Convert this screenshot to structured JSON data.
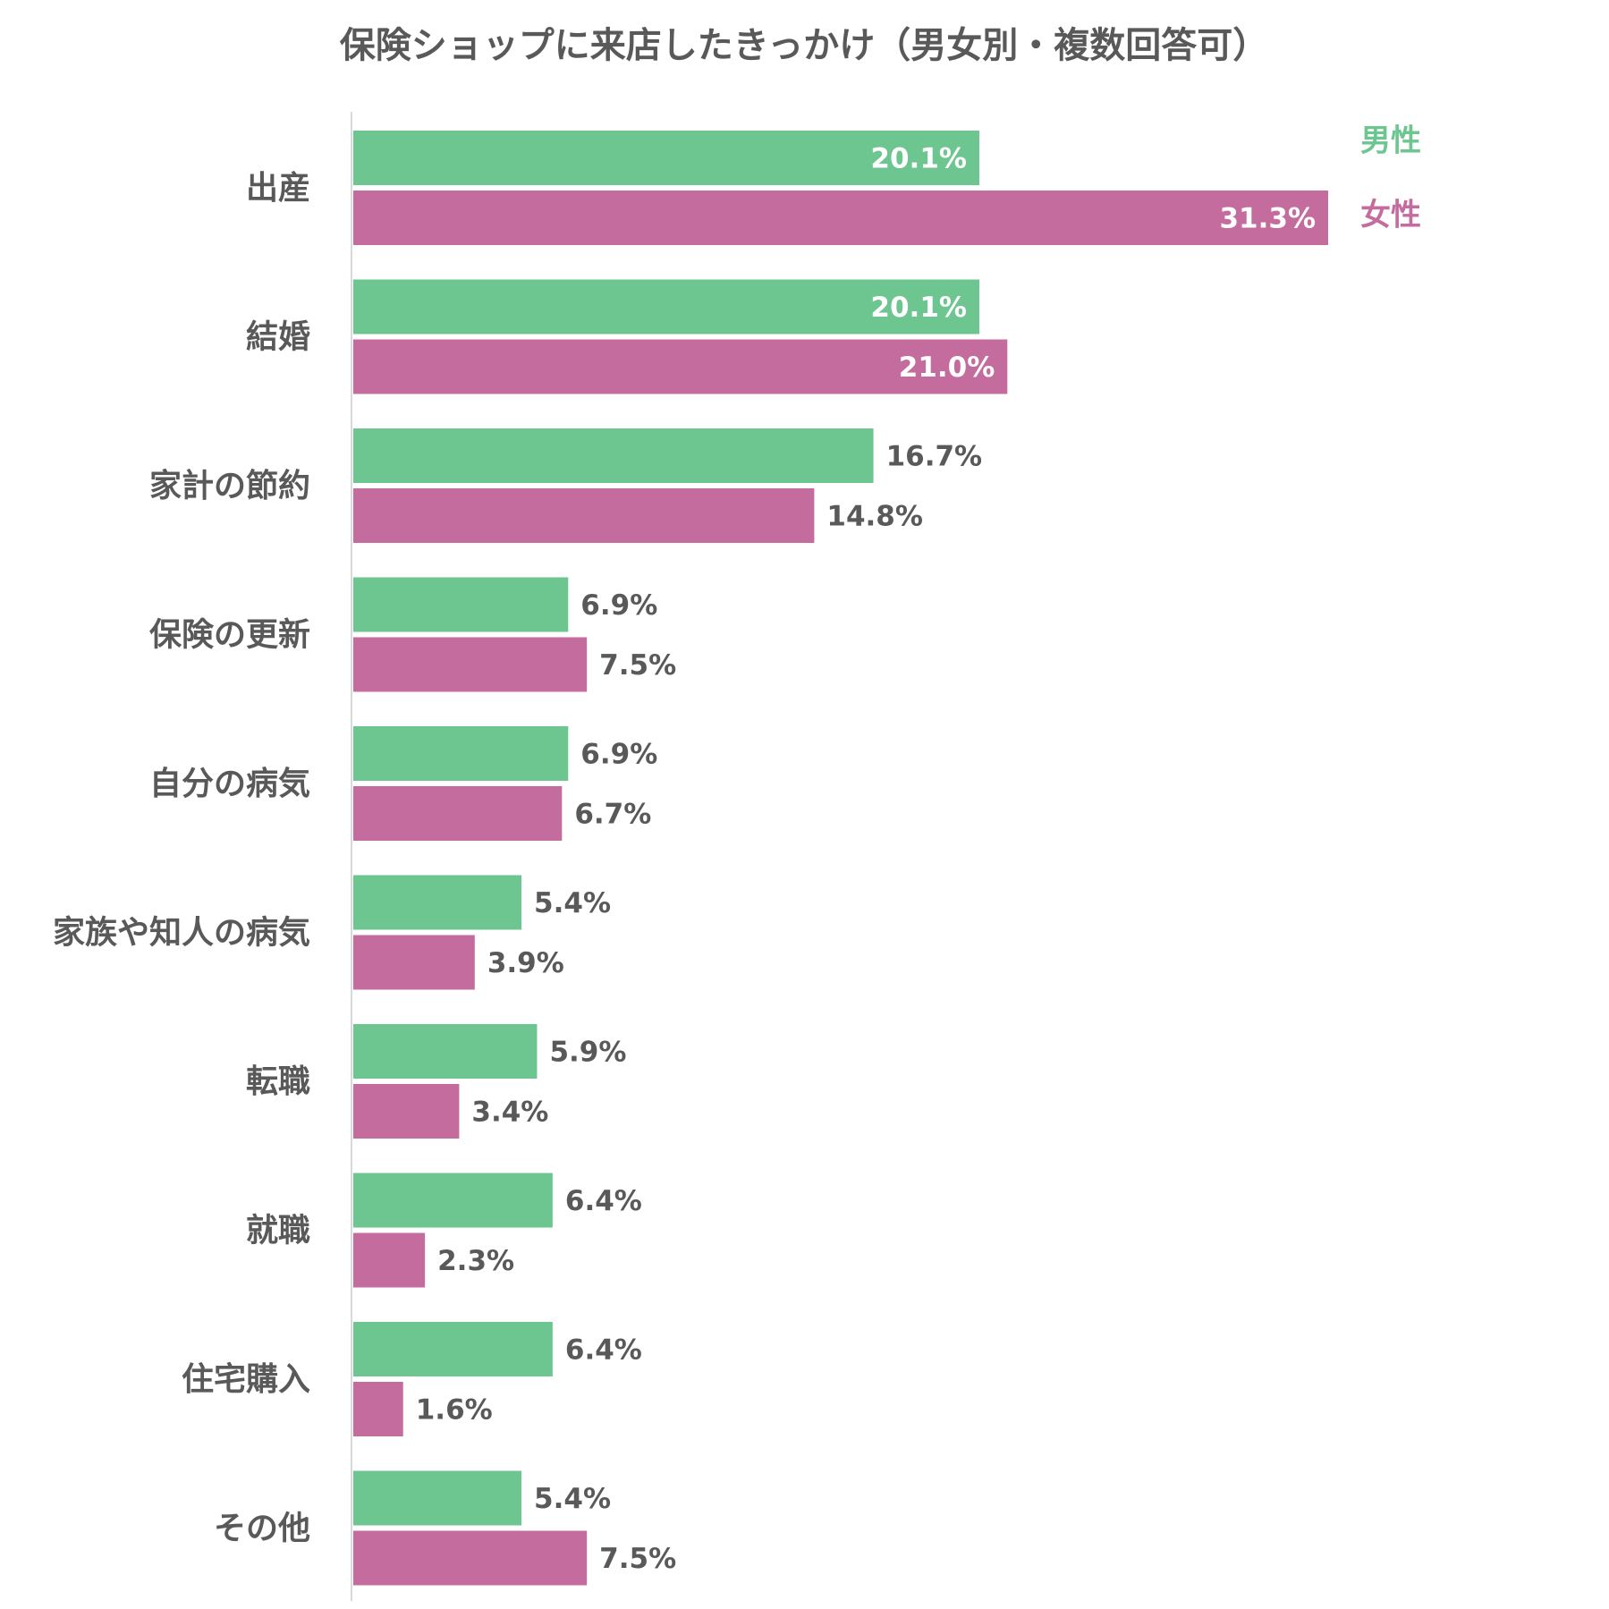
{
  "chart_data": {
    "type": "bar",
    "orientation": "horizontal",
    "title": "保険ショップに来店したきっかけ（男女別・複数回答可）",
    "categories": [
      "出産",
      "結婚",
      "家計の節約",
      "保険の更新",
      "自分の病気",
      "家族や知人の病気",
      "転職",
      "就職",
      "住宅購入",
      "その他"
    ],
    "highlight_category": "出産",
    "highlight_color": "#b8860b",
    "xlim": [
      0,
      31.3
    ],
    "value_suffix": "%",
    "legend_position": "top-right",
    "grid": false,
    "series": [
      {
        "name": "男性",
        "color": "#6dc590",
        "values": [
          20.1,
          20.1,
          16.7,
          6.9,
          6.9,
          5.4,
          5.9,
          6.4,
          6.4,
          5.4
        ],
        "labels": [
          "20.1%",
          "20.1%",
          "16.7%",
          "6.9%",
          "6.9%",
          "5.4%",
          "5.9%",
          "6.4%",
          "6.4%",
          "5.4%"
        ]
      },
      {
        "name": "女性",
        "color": "#c56c9f",
        "values": [
          31.3,
          21.0,
          14.8,
          7.5,
          6.7,
          3.9,
          3.4,
          2.3,
          1.6,
          7.5
        ],
        "labels": [
          "31.3%",
          "21.0%",
          "14.8%",
          "7.5%",
          "6.7%",
          "3.9%",
          "3.4%",
          "2.3%",
          "1.6%",
          "7.5%"
        ]
      }
    ]
  }
}
